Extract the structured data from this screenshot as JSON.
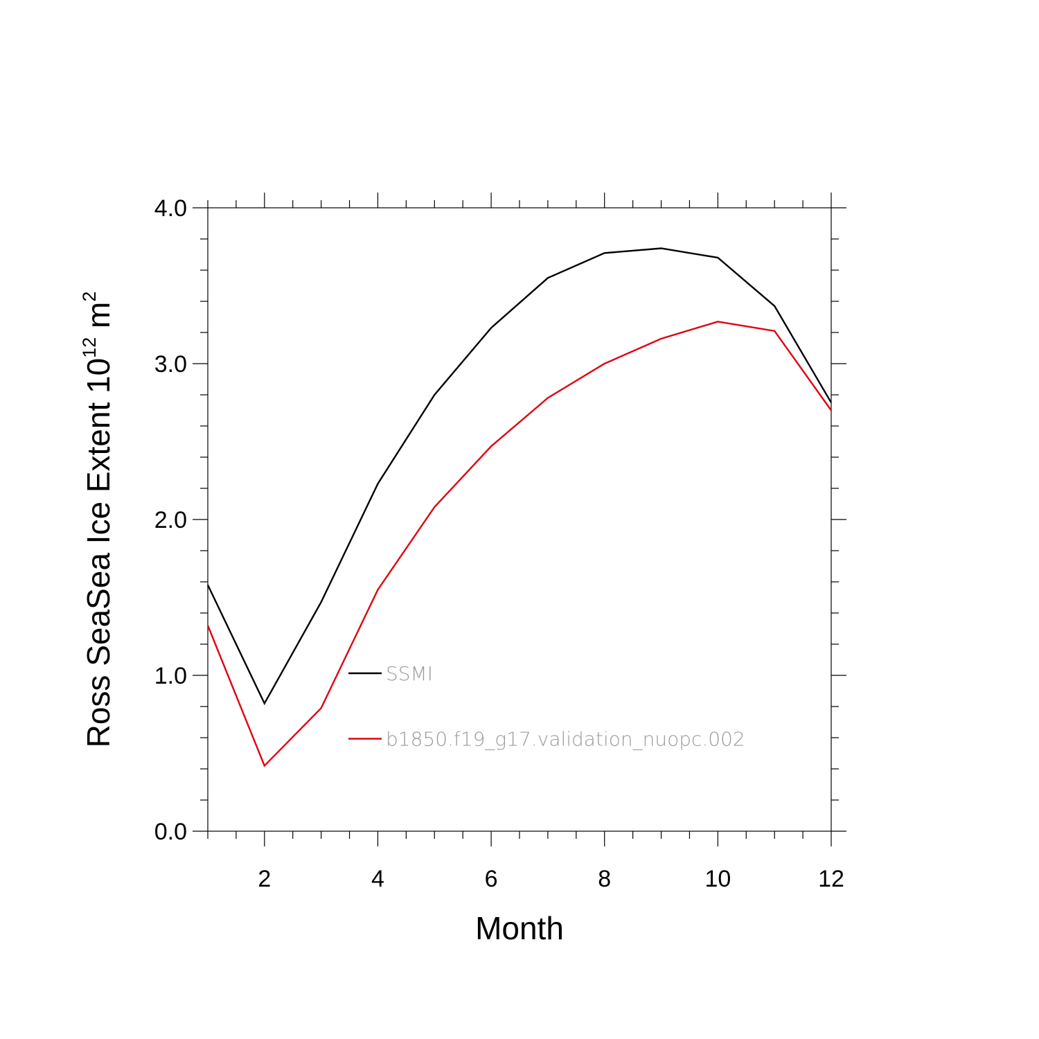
{
  "chart_data": {
    "type": "line",
    "title": "",
    "xlabel": "Month",
    "ylabel_main": "Ross SeaSea Ice Extent 10",
    "ylabel_exponent": "12",
    "ylabel_unit": " m",
    "ylabel_unit_exponent": "2",
    "xlim": [
      1,
      12
    ],
    "ylim": [
      0,
      4
    ],
    "x_ticks": [
      2,
      4,
      6,
      8,
      10,
      12
    ],
    "y_ticks": [
      0,
      1,
      2,
      3,
      4
    ],
    "y_tick_labels": [
      "0.0",
      "1.0",
      "2.0",
      "3.0",
      "4.0"
    ],
    "x": [
      1,
      2,
      3,
      4,
      5,
      6,
      7,
      8,
      9,
      10,
      11,
      12
    ],
    "series": [
      {
        "name": "SSMI",
        "color": "#000000",
        "values": [
          1.58,
          0.82,
          1.47,
          2.23,
          2.8,
          3.23,
          3.55,
          3.71,
          3.74,
          3.68,
          3.37,
          2.75
        ]
      },
      {
        "name": "b1850.f19_g17.validation_nuopc.002",
        "color": "#e0000f",
        "values": [
          1.32,
          0.42,
          0.79,
          1.55,
          2.08,
          2.47,
          2.78,
          3.0,
          3.16,
          3.27,
          3.21,
          2.7
        ]
      }
    ],
    "legend_position": "inside-lower-center"
  }
}
